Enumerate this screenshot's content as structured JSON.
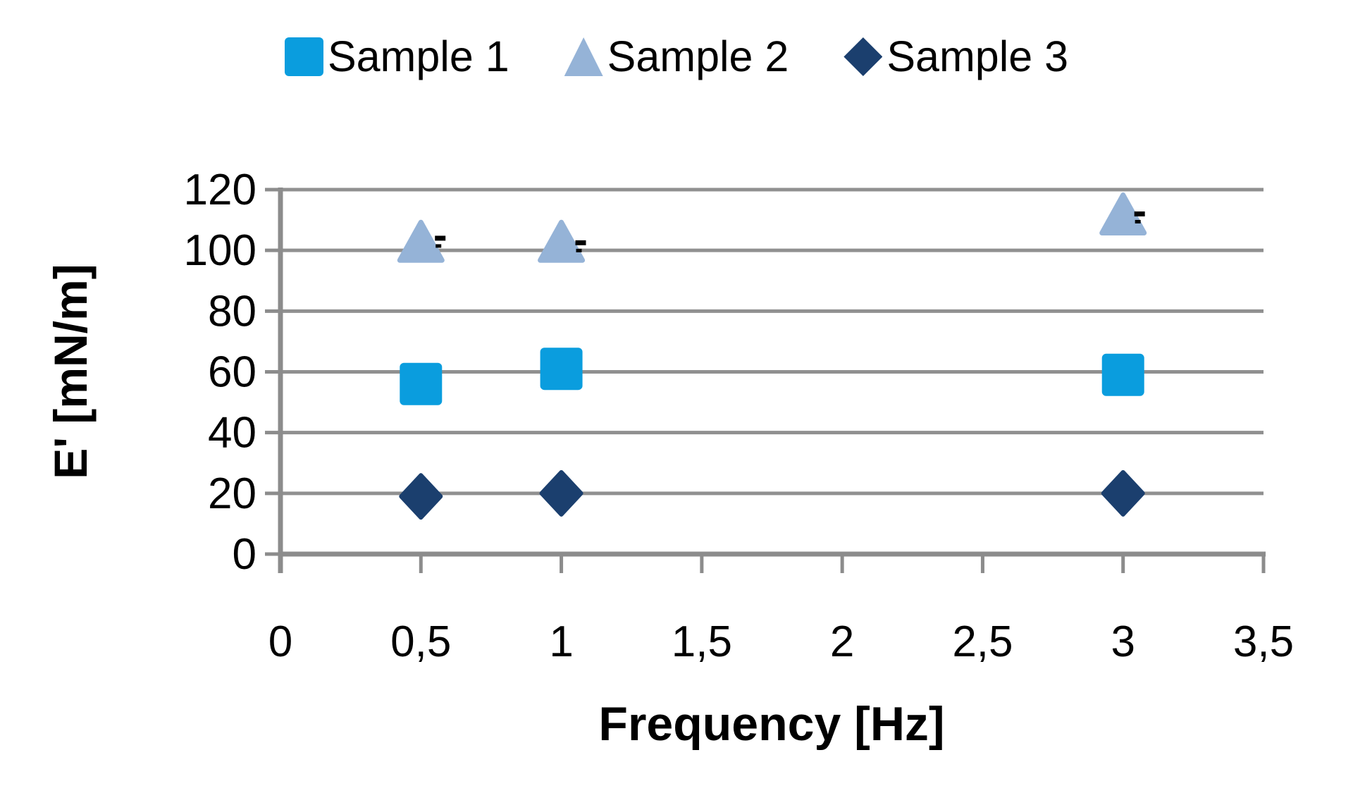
{
  "chart_data": {
    "type": "scatter",
    "title": "",
    "xlabel": "Frequency [Hz]",
    "ylabel": "E' [mN/m]",
    "xlim": [
      0,
      3.5
    ],
    "ylim": [
      0,
      120
    ],
    "grid": "horizontal",
    "legend_position": "top-center",
    "x_ticks": [
      {
        "value": 0,
        "label": "0"
      },
      {
        "value": 0.5,
        "label": "0,5"
      },
      {
        "value": 1,
        "label": "1"
      },
      {
        "value": 1.5,
        "label": "1,5"
      },
      {
        "value": 2,
        "label": "2"
      },
      {
        "value": 2.5,
        "label": "2,5"
      },
      {
        "value": 3,
        "label": "3"
      },
      {
        "value": 3.5,
        "label": "3,5"
      }
    ],
    "y_ticks": [
      {
        "value": 0,
        "label": "0"
      },
      {
        "value": 20,
        "label": "20"
      },
      {
        "value": 40,
        "label": "40"
      },
      {
        "value": 60,
        "label": "60"
      },
      {
        "value": 80,
        "label": "80"
      },
      {
        "value": 100,
        "label": "100"
      },
      {
        "value": 120,
        "label": "120"
      }
    ],
    "series": [
      {
        "name": "Sample 1",
        "marker": "square",
        "color": "#0A9DDE",
        "points": [
          {
            "x": 0.5,
            "y": 56
          },
          {
            "x": 1,
            "y": 61
          },
          {
            "x": 3,
            "y": 59
          }
        ]
      },
      {
        "name": "Sample 2",
        "marker": "triangle",
        "color": "#95B3D7",
        "points": [
          {
            "x": 0.5,
            "y": 103
          },
          {
            "x": 1,
            "y": 103
          },
          {
            "x": 3,
            "y": 112
          }
        ]
      },
      {
        "name": "Sample 3",
        "marker": "diamond",
        "color": "#1B3F6E",
        "points": [
          {
            "x": 0.5,
            "y": 19
          },
          {
            "x": 1,
            "y": 20
          },
          {
            "x": 3,
            "y": 20
          }
        ]
      }
    ],
    "error_caps": {
      "color": "#000000",
      "points": [
        {
          "x": 0.55,
          "y": 104
        },
        {
          "x": 1.05,
          "y": 102.5
        },
        {
          "x": 3.04,
          "y": 112
        }
      ]
    },
    "colors": {
      "axis": "#8C8C8C",
      "gridline": "#909090",
      "text": "#000000",
      "background": "#FFFFFF"
    }
  }
}
